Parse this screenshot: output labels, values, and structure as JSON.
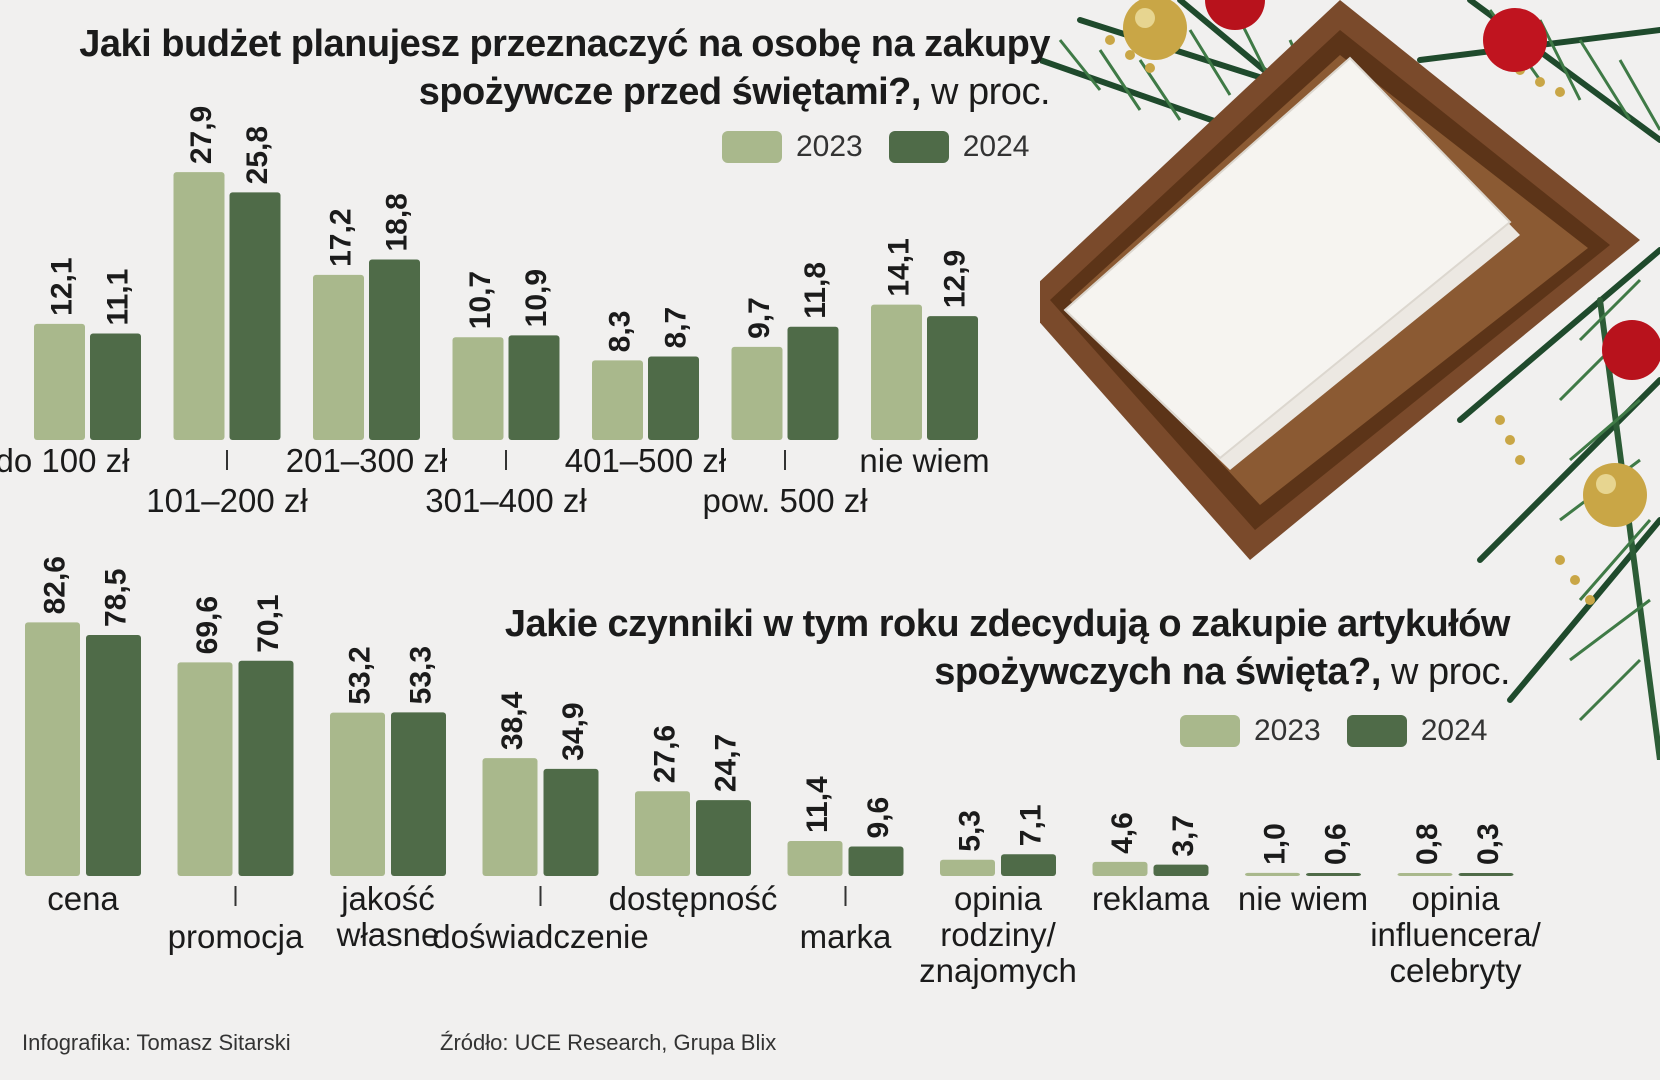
{
  "colors": {
    "y2023": "#a9b88c",
    "y2024": "#4f6b48",
    "background": "#f1f0ef"
  },
  "chart1": {
    "title_bold": "Jaki budżet planujesz przeznaczyć na osobę na zakupy spożywcze przed świętami?,",
    "title_unit": "w proc.",
    "title_line1": "Jaki budżet planujesz przeznaczyć na osobę na zakupy",
    "title_line2": "spożywcze przed świętami?,",
    "legend": [
      "2023",
      "2024"
    ]
  },
  "chart2": {
    "title_line1": "Jakie czynniki w tym roku zdecydują o zakupie artykułów",
    "title_line2": "spożywczych na święta?,",
    "title_unit": "w proc.",
    "legend": [
      "2023",
      "2024"
    ]
  },
  "chart_data": [
    {
      "type": "bar",
      "title": "Jaki budżet planujesz przeznaczyć na osobę na zakupy spożywcze przed świętami?, w proc.",
      "categories": [
        "do 100 zł",
        "101–200 zł",
        "201–300 zł",
        "301–400 zł",
        "401–500 zł",
        "pow. 500 zł",
        "nie wiem"
      ],
      "series": [
        {
          "name": "2023",
          "values": [
            12.1,
            27.9,
            17.2,
            10.7,
            8.3,
            9.7,
            14.1
          ],
          "labels": [
            "12,1",
            "27,9",
            "17,2",
            "10,7",
            "8,3",
            "9,7",
            "14,1"
          ]
        },
        {
          "name": "2024",
          "values": [
            11.1,
            25.8,
            18.8,
            10.9,
            8.7,
            11.8,
            12.9
          ],
          "labels": [
            "11,1",
            "25,8",
            "18,8",
            "10,9",
            "8,7",
            "11,8",
            "12,9"
          ]
        }
      ],
      "legend": "top-right",
      "grid": false
    },
    {
      "type": "bar",
      "title": "Jakie czynniki w tym roku zdecydują o zakupie artykułów spożywczych na święta?, w proc.",
      "categories": [
        "cena",
        "promocja",
        "jakość",
        "własne doświadczenie",
        "dostępność",
        "marka",
        "opinia rodziny/ znajomych",
        "reklama",
        "nie wiem",
        "opinia influencera/ celebryty"
      ],
      "series": [
        {
          "name": "2023",
          "values": [
            82.6,
            69.6,
            53.2,
            38.4,
            27.6,
            11.4,
            5.3,
            4.6,
            1.0,
            0.8
          ],
          "labels": [
            "82,6",
            "69,6",
            "53,2",
            "38,4",
            "27,6",
            "11,4",
            "5,3",
            "4,6",
            "1,0",
            "0,8"
          ]
        },
        {
          "name": "2024",
          "values": [
            78.5,
            70.1,
            53.3,
            34.9,
            24.7,
            9.6,
            7.1,
            3.7,
            0.6,
            0.3
          ],
          "labels": [
            "78,5",
            "70,1",
            "53,3",
            "34,9",
            "24,7",
            "9,6",
            "7,1",
            "3,7",
            "0,6",
            "0,3"
          ]
        }
      ],
      "legend": "top-right",
      "grid": false
    }
  ],
  "footer": {
    "credit": "Infografika: Tomasz Sitarski",
    "source": "Źródło: UCE Research, Grupa Blix"
  }
}
